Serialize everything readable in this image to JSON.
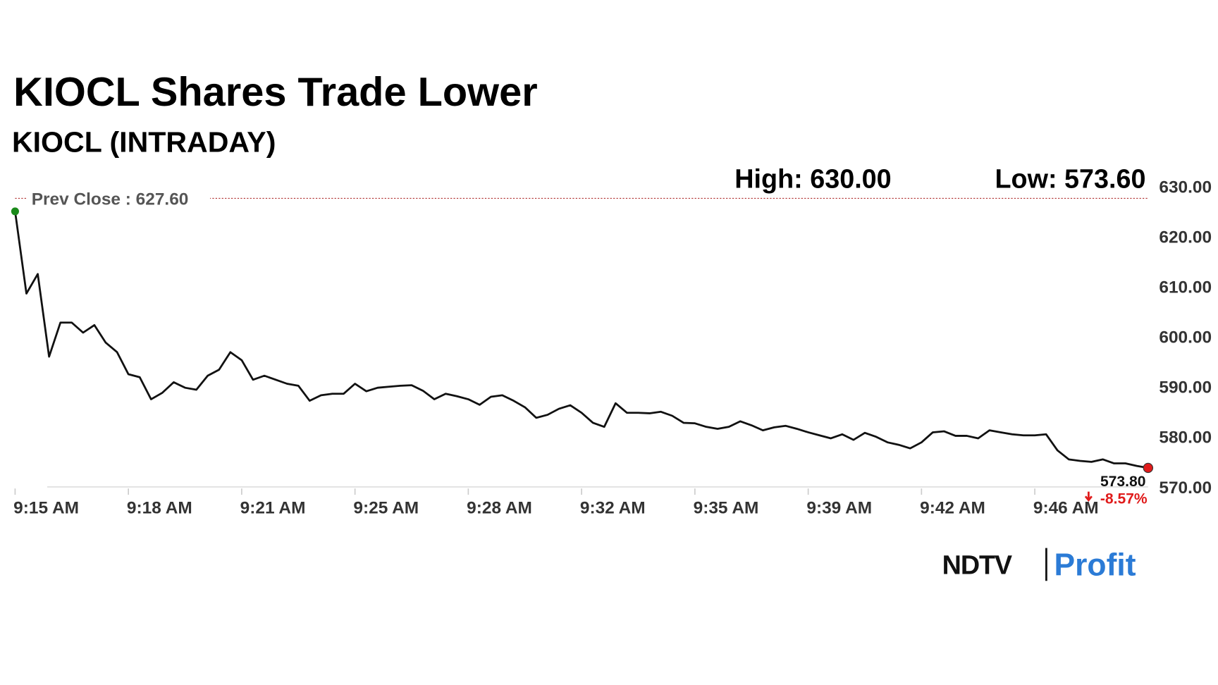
{
  "chart_data": {
    "type": "line",
    "title": "KIOCL Shares Trade Lower",
    "subtitle": "KIOCL (INTRADAY)",
    "high_label": "High: 630.00",
    "low_label": "Low: 573.60",
    "prev_close": {
      "value": 627.6,
      "label": "Prev Close : 627.60"
    },
    "last_label": "573.80",
    "change_label": "-8.57%",
    "logo": {
      "left": "NDTV",
      "right": "Profit"
    },
    "color": "#111111",
    "start_color": "#1a8a1a",
    "end_color": "#e01b1b",
    "xlim": [
      0,
      100
    ],
    "xticks": [
      {
        "value": 0,
        "label": "9:15 AM"
      },
      {
        "value": 10,
        "label": "9:18 AM"
      },
      {
        "value": 20,
        "label": "9:21 AM"
      },
      {
        "value": 30,
        "label": "9:25 AM"
      },
      {
        "value": 40,
        "label": "9:28 AM"
      },
      {
        "value": 50,
        "label": "9:32 AM"
      },
      {
        "value": 60,
        "label": "9:35 AM"
      },
      {
        "value": 70,
        "label": "9:39 AM"
      },
      {
        "value": 80,
        "label": "9:42 AM"
      },
      {
        "value": 90,
        "label": "9:46 AM"
      }
    ],
    "ylim": [
      570,
      630
    ],
    "yticks": [
      {
        "value": 570,
        "label": "570.00"
      },
      {
        "value": 580,
        "label": "580.00"
      },
      {
        "value": 590,
        "label": "590.00"
      },
      {
        "value": 600,
        "label": "600.00"
      },
      {
        "value": 610,
        "label": "610.00"
      },
      {
        "value": 620,
        "label": "620.00"
      },
      {
        "value": 630,
        "label": "630.00"
      }
    ],
    "values": [
      625.0,
      608.6,
      612.5,
      596.0,
      602.8,
      602.8,
      600.8,
      602.3,
      598.8,
      596.9,
      592.5,
      591.9,
      587.5,
      588.8,
      590.9,
      589.8,
      589.4,
      592.2,
      593.4,
      596.9,
      595.3,
      591.4,
      592.2,
      591.4,
      590.6,
      590.2,
      587.2,
      588.3,
      588.6,
      588.6,
      590.6,
      589.1,
      589.8,
      590.0,
      590.2,
      590.3,
      589.2,
      587.5,
      588.6,
      588.1,
      587.5,
      586.4,
      588.0,
      588.3,
      587.2,
      585.9,
      583.8,
      584.4,
      585.6,
      586.3,
      584.8,
      582.8,
      582.0,
      586.7,
      584.8,
      584.8,
      584.7,
      585.0,
      584.2,
      582.8,
      582.7,
      582.0,
      581.6,
      582.0,
      583.1,
      582.3,
      581.3,
      581.9,
      582.2,
      581.6,
      580.9,
      580.3,
      579.7,
      580.5,
      579.4,
      580.8,
      580.0,
      578.9,
      578.4,
      577.7,
      578.9,
      580.9,
      581.1,
      580.2,
      580.2,
      579.7,
      581.3,
      580.9,
      580.5,
      580.3,
      580.3,
      580.5,
      577.3,
      575.5,
      575.2,
      575.0,
      575.5,
      574.7,
      574.7,
      574.2,
      573.8
    ]
  }
}
